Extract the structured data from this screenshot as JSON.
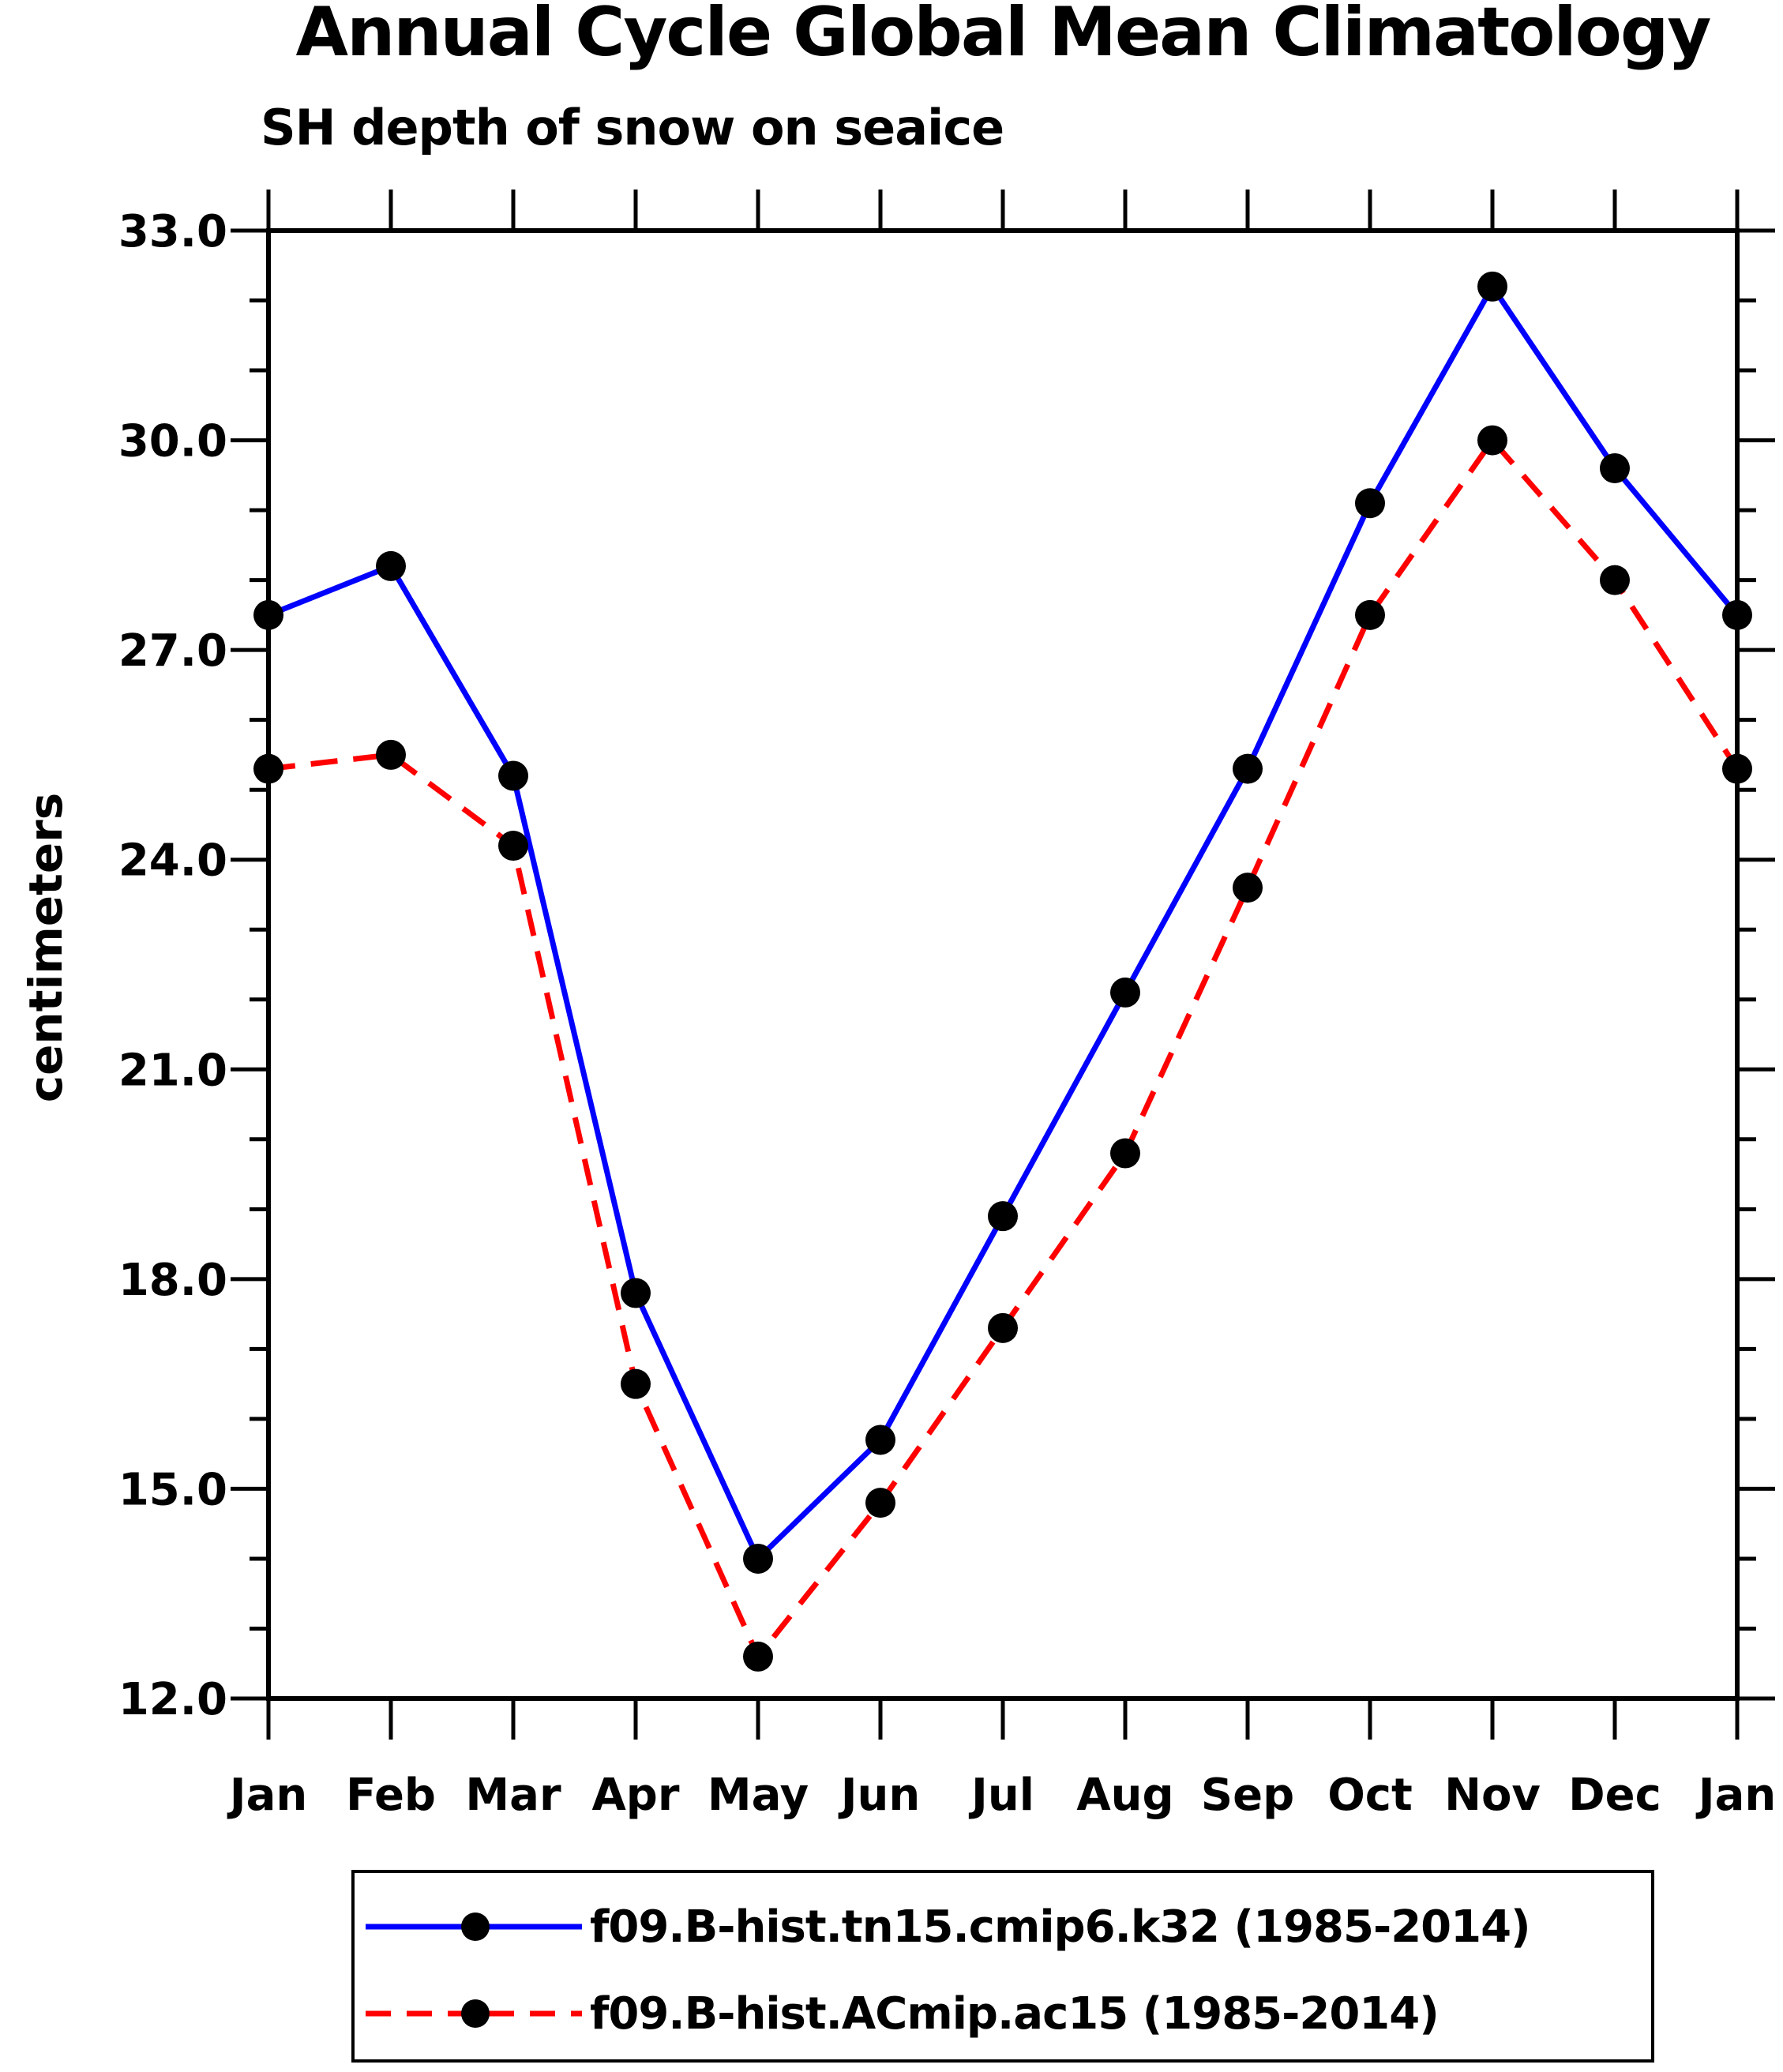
{
  "chart_data": {
    "type": "line",
    "title": "Annual Cycle Global Mean Climatology",
    "subtitle": "SH depth of snow on seaice",
    "ylabel": "centimeters",
    "xlabel": "",
    "categories": [
      "Jan",
      "Feb",
      "Mar",
      "Apr",
      "May",
      "Jun",
      "Jul",
      "Aug",
      "Sep",
      "Oct",
      "Nov",
      "Dec",
      "Jan"
    ],
    "ylim": [
      12.0,
      33.0
    ],
    "ytick_major_interval": 3.0,
    "ytick_minor_interval": 1.0,
    "ytick_labels": [
      "33.0",
      "30.0",
      "27.0",
      "24.0",
      "21.0",
      "18.0",
      "15.0",
      "12.0"
    ],
    "grid": false,
    "legend_position": "bottom",
    "series": [
      {
        "name": "f09.B-hist.tn15.cmip6.k32 (1985-2014)",
        "color": "#0000ff",
        "line_style": "solid",
        "marker": "circle",
        "marker_color": "#000000",
        "values": [
          27.5,
          28.2,
          25.2,
          17.8,
          14.0,
          15.7,
          18.9,
          22.1,
          25.3,
          29.1,
          32.2,
          29.6,
          27.5
        ]
      },
      {
        "name": "f09.B-hist.ACmip.ac15 (1985-2014)",
        "color": "#ff0000",
        "line_style": "dashed",
        "marker": "circle",
        "marker_color": "#000000",
        "values": [
          25.3,
          25.5,
          24.2,
          16.5,
          12.6,
          14.8,
          17.3,
          19.8,
          23.6,
          27.5,
          30.0,
          28.0,
          25.3
        ]
      }
    ],
    "axis_color": "#000000",
    "background_color": "#ffffff"
  }
}
